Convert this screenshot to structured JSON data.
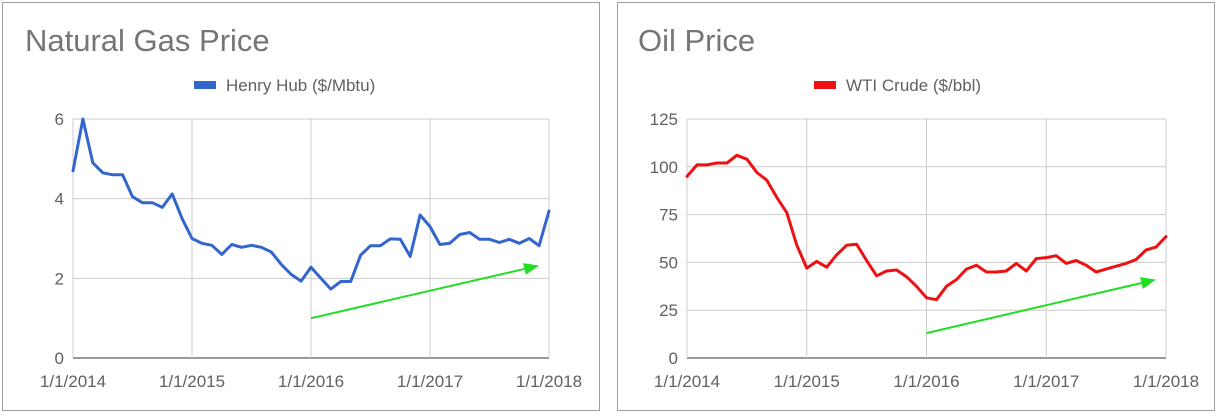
{
  "chart_data": [
    {
      "type": "line",
      "title": "Natural Gas Price",
      "xlabel": "",
      "ylabel": "",
      "ylim": [
        0,
        6
      ],
      "yticks": [
        "0",
        "2",
        "4",
        "6"
      ],
      "xticks": [
        "1/1/2014",
        "1/1/2015",
        "1/1/2016",
        "1/1/2017",
        "1/1/2018"
      ],
      "x_range": [
        "2014-01",
        "2018-01"
      ],
      "grid": true,
      "legend_position": "top",
      "series": [
        {
          "name": "Henry Hub ($/Mbtu)",
          "color": "#3366cc",
          "x": [
            "2014-01",
            "2014-02",
            "2014-03",
            "2014-04",
            "2014-05",
            "2014-06",
            "2014-07",
            "2014-08",
            "2014-09",
            "2014-10",
            "2014-11",
            "2014-12",
            "2015-01",
            "2015-02",
            "2015-03",
            "2015-04",
            "2015-05",
            "2015-06",
            "2015-07",
            "2015-08",
            "2015-09",
            "2015-10",
            "2015-11",
            "2015-12",
            "2016-01",
            "2016-02",
            "2016-03",
            "2016-04",
            "2016-05",
            "2016-06",
            "2016-07",
            "2016-08",
            "2016-09",
            "2016-10",
            "2016-11",
            "2016-12",
            "2017-01",
            "2017-02",
            "2017-03",
            "2017-04",
            "2017-05",
            "2017-06",
            "2017-07",
            "2017-08",
            "2017-09",
            "2017-10",
            "2017-11",
            "2017-12",
            "2018-01"
          ],
          "values": [
            4.7,
            6.0,
            4.9,
            4.65,
            4.6,
            4.6,
            4.05,
            3.9,
            3.9,
            3.78,
            4.12,
            3.5,
            3.0,
            2.88,
            2.83,
            2.6,
            2.85,
            2.78,
            2.83,
            2.78,
            2.66,
            2.35,
            2.1,
            1.93,
            2.28,
            2.0,
            1.73,
            1.92,
            1.92,
            2.58,
            2.82,
            2.82,
            2.99,
            2.98,
            2.55,
            3.59,
            3.3,
            2.85,
            2.88,
            3.1,
            3.15,
            2.98,
            2.98,
            2.9,
            2.98,
            2.88,
            3.0,
            2.82,
            3.69
          ]
        }
      ],
      "annotation": {
        "type": "trend-arrow",
        "color": "#22dd22",
        "from": {
          "x": "2016-01",
          "y": 1.0
        },
        "to": {
          "x": "2017-12",
          "y": 2.32
        }
      }
    },
    {
      "type": "line",
      "title": "Oil Price",
      "xlabel": "",
      "ylabel": "",
      "ylim": [
        0,
        125
      ],
      "yticks": [
        "0",
        "25",
        "50",
        "75",
        "100",
        "125"
      ],
      "xticks": [
        "1/1/2014",
        "1/1/2015",
        "1/1/2016",
        "1/1/2017",
        "1/1/2018"
      ],
      "x_range": [
        "2014-01",
        "2018-01"
      ],
      "grid": true,
      "legend_position": "top",
      "series": [
        {
          "name": "WTI Crude ($/bbl)",
          "color": "#ee1111",
          "x": [
            "2014-01",
            "2014-02",
            "2014-03",
            "2014-04",
            "2014-05",
            "2014-06",
            "2014-07",
            "2014-08",
            "2014-09",
            "2014-10",
            "2014-11",
            "2014-12",
            "2015-01",
            "2015-02",
            "2015-03",
            "2015-04",
            "2015-05",
            "2015-06",
            "2015-07",
            "2015-08",
            "2015-09",
            "2015-10",
            "2015-11",
            "2015-12",
            "2016-01",
            "2016-02",
            "2016-03",
            "2016-04",
            "2016-05",
            "2016-06",
            "2016-07",
            "2016-08",
            "2016-09",
            "2016-10",
            "2016-11",
            "2016-12",
            "2017-01",
            "2017-02",
            "2017-03",
            "2017-04",
            "2017-05",
            "2017-06",
            "2017-07",
            "2017-08",
            "2017-09",
            "2017-10",
            "2017-11",
            "2017-12",
            "2018-01"
          ],
          "values": [
            95,
            101,
            101,
            102,
            102,
            106,
            104,
            97,
            93,
            84,
            76,
            59,
            47,
            50.5,
            47.5,
            54,
            59,
            59.5,
            51,
            43,
            45.5,
            46,
            42.5,
            37.5,
            31.5,
            30.5,
            37.5,
            41,
            46.5,
            48.5,
            45,
            45,
            45.5,
            49.5,
            45.5,
            52,
            52.5,
            53.5,
            49.5,
            51,
            48.5,
            45,
            46.5,
            48,
            49.5,
            51.5,
            56.5,
            58,
            63.5
          ]
        }
      ],
      "annotation": {
        "type": "trend-arrow",
        "color": "#22dd22",
        "from": {
          "x": "2016-01",
          "y": 13
        },
        "to": {
          "x": "2017-12",
          "y": 41
        }
      }
    }
  ]
}
